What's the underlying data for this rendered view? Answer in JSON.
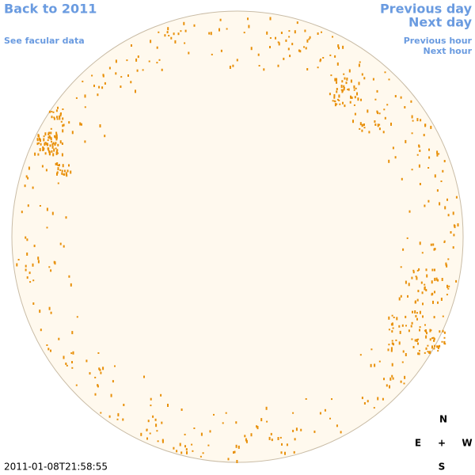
{
  "links": {
    "back": "Back to 2011",
    "facular": "See facular data",
    "previous_day": "Previous day",
    "next_day": "Next day",
    "previous_hour": "Previous hour",
    "next_hour": "Next hour"
  },
  "timestamp": "2011-01-08T21:58:55",
  "compass": {
    "n": "N",
    "e": "E",
    "center": "+",
    "w": "W",
    "s": "S"
  }
}
